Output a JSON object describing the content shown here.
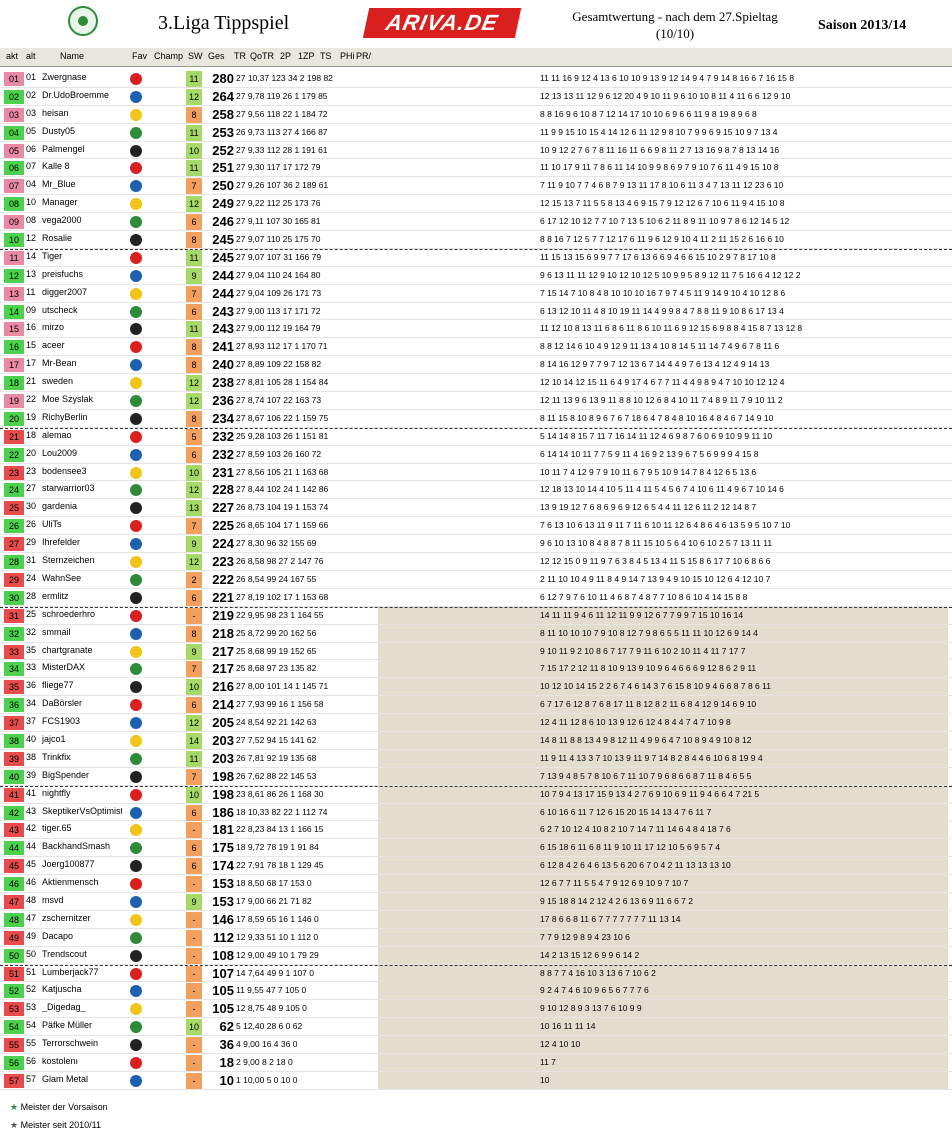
{
  "header": {
    "title": "3.Liga Tippspiel",
    "brand": "ARIVA.DE",
    "subtitle": "Gesamtwertung - nach dem 27.Spieltag (10/10)",
    "season": "Saison 2013/14"
  },
  "columns": {
    "akt": "akt",
    "alt": "alt",
    "name": "Name",
    "fav": "Fav",
    "champ": "Champ",
    "sw": "SW",
    "ges": "Ges",
    "tr": "TR",
    "qotr": "QoTR",
    "p2": "2P",
    "zp1": "1ZP",
    "ts": "TS",
    "phi": "PHi",
    "pr": "PR/"
  },
  "rows": [
    {
      "akt": "01",
      "alt": "01",
      "name": "Zwergnase",
      "sw": "11",
      "ges": "280",
      "stats": "27 10,37 123 34 2 198 82",
      "weeks": "11 11 16 9 12 4 13 6 10 10 9 13 9 12 14 9 4 7 9 14 8 16 6 7 16 15 8"
    },
    {
      "akt": "02",
      "alt": "02",
      "name": "Dr.UdoBroemme",
      "sw": "12",
      "ges": "264",
      "stats": "27 9,78 119 26 1 179 85",
      "weeks": "12 13 13 11 12 9 6 12 20 4 9 10 11 9 6 10 10 8 11 4 11 6 6 12 9 10"
    },
    {
      "akt": "03",
      "alt": "03",
      "name": "heisan",
      "sw": "8",
      "ges": "258",
      "stats": "27 9,56 118 22 1 184 72",
      "weeks": "8 8 16 9 6 10 8 7 12 14 17 10 10 6 9 6 6 11 9 8 19 8 9 6 8"
    },
    {
      "akt": "04",
      "alt": "05",
      "name": "Dusty05",
      "sw": "11",
      "ges": "253",
      "stats": "26 9,73 113 27 4 166 87",
      "weeks": "11 9 9 15 10 15 4 14 12 6 11 12 9 8 10 7 9 9 6 9 15 10 9 7 13 4"
    },
    {
      "akt": "05",
      "alt": "06",
      "name": "Palmengel",
      "sw": "10",
      "ges": "252",
      "stats": "27 9,33 112 28 1 191 61",
      "weeks": "10 9 12 2 7 6 7 8 11 16 11 6 6 9 8 11 2 7 13 16 9 8 7 8 13 14 16"
    },
    {
      "akt": "06",
      "alt": "07",
      "name": "Kalle 8",
      "sw": "11",
      "ges": "251",
      "stats": "27 9,30 117 17 172 79",
      "weeks": "11 10 17 9 11 7 8 6 11 14 10 9 9 8 6 9 7 9 10 7 6 11 4 9 15 10 8"
    },
    {
      "akt": "07",
      "alt": "04",
      "name": "Mr_Blue",
      "sw": "7",
      "ges": "250",
      "stats": "27 9,26 107 36 2 189 61",
      "weeks": "7 11 9 10 7 7 4 6 8 7 9 13 11 17 8 10 6 11 3 4 7 13 11 12 23 6 10"
    },
    {
      "akt": "08",
      "alt": "10",
      "name": "Manager",
      "sw": "12",
      "ges": "249",
      "stats": "27 9,22 112 25 173 76",
      "weeks": "12 15 13 7 11 5 5 8 13 4 6 9 15 7 9 12 12 6 7 10 6 11 9 4 15 10 8"
    },
    {
      "akt": "09",
      "alt": "08",
      "name": "vega2000",
      "sw": "6",
      "ges": "246",
      "stats": "27 9,11 107 30 165 81",
      "weeks": "6 17 12 10 12 7 7 10 7 13 5 10 6 2 11 8 9 11 10 9 7 8 6 12 14 5 12"
    },
    {
      "akt": "10",
      "alt": "12",
      "name": "Rosalie",
      "sw": "8",
      "ges": "245",
      "stats": "27 9,07 110 25 175 70",
      "weeks": "8 8 16 7 12 5 7 7 12 17 6 11 9 6 12 9 10 4 11 2 11 15 2 6 16 6 10"
    },
    {
      "akt": "11",
      "alt": "14",
      "name": "Tiger",
      "sw": "11",
      "ges": "245",
      "stats": "27 9,07 107 31 166 79",
      "weeks": "11 15 13 15 6 9 9 7 7 17 6 13 6 6 9 4 6 6 15 10 2 9 7 8 17 10 8"
    },
    {
      "akt": "12",
      "alt": "13",
      "name": "preisfuchs",
      "sw": "9",
      "ges": "244",
      "stats": "27 9,04 110 24 164 80",
      "weeks": "9 6 13 11 11 12 9 10 12 10 12 5 10 9 9 5 8 9 12 11 7 5 16 6 4 12 12 2"
    },
    {
      "akt": "13",
      "alt": "11",
      "name": "digger2007",
      "sw": "7",
      "ges": "244",
      "stats": "27 9,04 109 26 171 73",
      "weeks": "7 15 14 7 10 8 4 8 10 10 10 16 7 9 7 4 5 11 9 14 9 10 4 10 12 8 6"
    },
    {
      "akt": "14",
      "alt": "09",
      "name": "utscheck",
      "sw": "6",
      "ges": "243",
      "stats": "27 9,00 113 17 171 72",
      "weeks": "6 13 12 10 11 4 8 10 19 11 14 4 9 9 8 4 7 8 8 11 9 10 8 6 17 13 4"
    },
    {
      "akt": "15",
      "alt": "16",
      "name": "mirzo",
      "sw": "11",
      "ges": "243",
      "stats": "27 9,00 112 19 164 79",
      "weeks": "11 12 10 8 13 11 6 8 6 11 8 6 10 11 6 9 12 15 6 9 8 8 4 15 8 7 13 12 8"
    },
    {
      "akt": "16",
      "alt": "15",
      "name": "aceer",
      "sw": "8",
      "ges": "241",
      "stats": "27 8,93 112 17 1 170 71",
      "weeks": "8 8 12 14 6 10 4 9 12 9 11 13 4 10 8 14 5 11 14 7 4 9 6 7 8 11 6"
    },
    {
      "akt": "17",
      "alt": "17",
      "name": "Mr-Bean",
      "sw": "8",
      "ges": "240",
      "stats": "27 8,89 109 22 158 82",
      "weeks": "8 14 16 12 9 7 7 9 7 12 13 6 7 14 4 4 9 7 6 13 4 12 4 9 14 13"
    },
    {
      "akt": "18",
      "alt": "21",
      "name": "sweden",
      "sw": "12",
      "ges": "238",
      "stats": "27 8,81 105 28 1 154 84",
      "weeks": "12 10 14 12 15 11 6 4 9 17 4 6 7 7 11 4 4 9 8 9 4 7 10 10 12 12 4"
    },
    {
      "akt": "19",
      "alt": "22",
      "name": "Moe Szyslak",
      "sw": "12",
      "ges": "236",
      "stats": "27 8,74 107 22 163 73",
      "weeks": "12 11 13 9 6 13 9 11 8 8 10 12 6 8 4 10 11 7 4 8 9 11 7 9 10 11 2"
    },
    {
      "akt": "20",
      "alt": "19",
      "name": "RichyBerlin",
      "sw": "8",
      "ges": "234",
      "stats": "27 8,67 106 22 1 159 75",
      "weeks": "8 11 15 8 10 8 9 6 7 6 7 18 6 4 7 8 4 8 10 16 4 8 4 6 7 14 9 10"
    },
    {
      "akt": "21",
      "alt": "18",
      "name": "alemao",
      "sw": "5",
      "ges": "232",
      "stats": "25 9,28 103 26 1 151 81",
      "weeks": "5 14 14 8 15 7 11 7 16 14 11 12 4 6 9 8 7 6 0 6 9 10 9 9 11 10"
    },
    {
      "akt": "22",
      "alt": "20",
      "name": "Lou2009",
      "sw": "6",
      "ges": "232",
      "stats": "27 8,59 103 26 160 72",
      "weeks": "6 14 14 10 11 7 7 5 9 11 4 16 9 2 13 9 6 7 5 6 9 9 9 4 15 8"
    },
    {
      "akt": "23",
      "alt": "23",
      "name": "bodensee3",
      "sw": "10",
      "ges": "231",
      "stats": "27 8,56 105 21 1 163 68",
      "weeks": "10 11 7 4 12 9 7 9 10 11 6 7 9 5 10 9 14 7 8 4 12 6 5 13 6"
    },
    {
      "akt": "24",
      "alt": "27",
      "name": "starwarrior03",
      "sw": "12",
      "ges": "228",
      "stats": "27 8,44 102 24 1 142 86",
      "weeks": "12 18 13 10 14 4 10 5 11 4 11 5 4 5 6 7 4 10 6 11 4 9 6 7 10 14 6"
    },
    {
      "akt": "25",
      "alt": "30",
      "name": "gardenia",
      "sw": "13",
      "ges": "227",
      "stats": "26 8,73 104 19 1 153 74",
      "weeks": "13 9 19 12 7 6 8 6 9 6 9 12 6 5 4 4 11 12 6 11 2 12 14 8 7"
    },
    {
      "akt": "26",
      "alt": "26",
      "name": "UliTs",
      "sw": "7",
      "ges": "225",
      "stats": "26 8,65 104 17 1 159 66",
      "weeks": "7 6 13 10 6 13 11 9 11 7 11 6 10 11 12 6 4 8 6 4 6 13 5 9 5 10 7 10"
    },
    {
      "akt": "27",
      "alt": "29",
      "name": "Ihrefelder",
      "sw": "9",
      "ges": "224",
      "stats": "27 8,30 96 32 155 69",
      "weeks": "9 6 10 13 10 8 4 8 8 7 8 11 15 10 5 6 4 10 6 10 2 5 7 13 11 11"
    },
    {
      "akt": "28",
      "alt": "31",
      "name": "Sternzeichen",
      "sw": "12",
      "ges": "223",
      "stats": "26 8,58 98 27 2 147 76",
      "weeks": "12 12 15 0 9 11 9 7 6 3 8 4 5 13 4 11 5 15 8 6 17 7 10 6 8 6 6"
    },
    {
      "akt": "29",
      "alt": "24",
      "name": "WahnSee",
      "sw": "2",
      "ges": "222",
      "stats": "26 8,54 99 24 167 55",
      "weeks": "2 11 10 10 4 9 11 8 4 9 14 7 13 9 4 9 10 15 10 12 6 4 12 10 7"
    },
    {
      "akt": "30",
      "alt": "28",
      "name": "ermlitz",
      "sw": "6",
      "ges": "221",
      "stats": "27 8,19 102 17 1 153 68",
      "weeks": "6 12 7 9 7 6 10 11 4 6 8 7 4 8 7 7 10 8 6 10 4 14 15 8 8"
    },
    {
      "akt": "31",
      "alt": "25",
      "name": "schroederhro",
      "sw": "-",
      "ges": "219",
      "stats": "22 9,95 98 23 1 164 55",
      "weeks": "14 11 11 9 4 6 11 12 11 9 9 12 6 7 7 9 9 7 15 10 16 14"
    },
    {
      "akt": "32",
      "alt": "32",
      "name": "smmail",
      "sw": "8",
      "ges": "218",
      "stats": "25 8,72 99 20 162 56",
      "weeks": "8 11 10 10 10 7 9 10 8 12 7 9 8 6 5 5 11 11 10 12 6 9 14 4"
    },
    {
      "akt": "33",
      "alt": "35",
      "name": "chartgranate",
      "sw": "9",
      "ges": "217",
      "stats": "25 8,68 99 19 152 65",
      "weeks": "9 10 11 9 2 10 8 6 7 17 7 9 11 6 10 2 10 11 4 11 7 17 7"
    },
    {
      "akt": "34",
      "alt": "33",
      "name": "MisterDAX",
      "sw": "7",
      "ges": "217",
      "stats": "25 8,68 97 23 135 82",
      "weeks": "7 15 17 2 12 11 8 10 9 13 9 10 9 6 4 6 6 6 9 12 8 6 2 9 11"
    },
    {
      "akt": "35",
      "alt": "36",
      "name": "fliege77",
      "sw": "10",
      "ges": "216",
      "stats": "27 8,00 101 14 1 145 71",
      "weeks": "10 12 10 14 15 2 2 6 7 4 6 14 3 7 6 15 8 10 9 4 6 6 8 7 8 6 11"
    },
    {
      "akt": "36",
      "alt": "34",
      "name": "DaBörsler",
      "sw": "6",
      "ges": "214",
      "stats": "27 7,93 99 16 1 156 58",
      "weeks": "6 7 17 6 12 8 7 6 8 17 11 8 12 8 2 11 6 8 4 12 9 14 6 9 10"
    },
    {
      "akt": "37",
      "alt": "37",
      "name": "FCS1903",
      "sw": "12",
      "ges": "205",
      "stats": "24 8,54 92 21 142 63",
      "weeks": "12 4 11 12 8 6 10 13 9 12 6 12 4 8 4 4 7 4 7 10 9 8"
    },
    {
      "akt": "38",
      "alt": "40",
      "name": "jajco1",
      "sw": "14",
      "ges": "203",
      "stats": "27 7,52 94 15 141 62",
      "weeks": "14 8 11 8 8 13 4 9 8 12 11 4 9 9 6 4 7 10 8 9 4 9 10 8 12"
    },
    {
      "akt": "39",
      "alt": "38",
      "name": "Trinkfix",
      "sw": "11",
      "ges": "203",
      "stats": "26 7,81 92 19 135 68",
      "weeks": "11 9 11 4 13 3 7 10 13 9 11 9 7 14 8 2 8 4 4 6 10 6 8 19 9 4"
    },
    {
      "akt": "40",
      "alt": "39",
      "name": "BigSpender",
      "sw": "7",
      "ges": "198",
      "stats": "26 7,62 88 22 145 53",
      "weeks": "7 13 9 4 8 5 7 8 10 6 7 11 10 7 9 6 8 6 6 8 7 11 8 4 6 5 5"
    },
    {
      "akt": "41",
      "alt": "41",
      "name": "nightfly",
      "sw": "10",
      "ges": "198",
      "stats": "23 8,61 86 26 1 168 30",
      "weeks": "10 7 9 4 13 17 15 9 13 4 2 7 6 9 10 6 9 11 9 4 6 6 4 7 21 5"
    },
    {
      "akt": "42",
      "alt": "43",
      "name": "SkeptikerVsOptimist",
      "sw": "6",
      "ges": "186",
      "stats": "18 10,33 82 22 1 112 74",
      "weeks": "6 10 16 6 11 7 12 6 15 20 15 14 13 4 7 6 11 7"
    },
    {
      "akt": "43",
      "alt": "42",
      "name": "tiger.65",
      "sw": "-",
      "ges": "181",
      "stats": "22 8,23 84 13 1 166 15",
      "weeks": "6 2 7 10 12 4 10 8 2 10 7 14 7 11 14 6 4 8 4 18 7 6"
    },
    {
      "akt": "44",
      "alt": "44",
      "name": "BackhandSmash",
      "sw": "6",
      "ges": "175",
      "stats": "18 9,72 78 19 1 91 84",
      "weeks": "6 15 18 6 11 6 8 11 9 10 11 17 12 10 5 6 9 5 7 4"
    },
    {
      "akt": "45",
      "alt": "45",
      "name": "Joerg100877",
      "sw": "6",
      "ges": "174",
      "stats": "22 7,91 78 18 1 129 45",
      "weeks": "6 12 8 4 2 6 4 6 13 5 6 20 6 7 0 4 2 11 13 13 13 10"
    },
    {
      "akt": "46",
      "alt": "46",
      "name": "Aktienmensch",
      "sw": "-",
      "ges": "153",
      "stats": "18 8,50 68 17 153 0",
      "weeks": "12 6 7 7 11 5 5 4 7 9 12 6 9 10 9 7 10 7"
    },
    {
      "akt": "47",
      "alt": "48",
      "name": "msvd",
      "sw": "9",
      "ges": "153",
      "stats": "17 9,00 66 21 71 82",
      "weeks": "9 15 18 8 14 2 12 4 2 6 13 6 9 11 6 6 7 2"
    },
    {
      "akt": "48",
      "alt": "47",
      "name": "zschernitzer",
      "sw": "-",
      "ges": "146",
      "stats": "17 8,59 65 16 1 146 0",
      "weeks": "17 8 6 6 8 11 6 7 7 7 7 7 7 7 11 13 14"
    },
    {
      "akt": "49",
      "alt": "49",
      "name": "Dacapo",
      "sw": "-",
      "ges": "112",
      "stats": "12 9,33 51 10 1 112 0",
      "weeks": "7 7 9 12 9 8 9 4 23 10 6"
    },
    {
      "akt": "50",
      "alt": "50",
      "name": "Trendscout",
      "sw": "-",
      "ges": "108",
      "stats": "12 9,00 49 10 1 79 29",
      "weeks": "14 2 13 15 12 6 9 9 6 14 2"
    },
    {
      "akt": "51",
      "alt": "51",
      "name": "Lumberjack77",
      "sw": "-",
      "ges": "107",
      "stats": "14 7,64 49 9 1 107 0",
      "weeks": "8 8 7 7 4 16 10 3 13 6 7 10 6 2"
    },
    {
      "akt": "52",
      "alt": "52",
      "name": "Katjuscha",
      "sw": "-",
      "ges": "105",
      "stats": "11 9,55 47 7 105 0",
      "weeks": "9 2 4 7 4 6 10 9 6 5 6 7 7 7 6"
    },
    {
      "akt": "53",
      "alt": "53",
      "name": "_Digedag_",
      "sw": "-",
      "ges": "105",
      "stats": "12 8,75 48 9 105 0",
      "weeks": "9 10 12 8 9 3 13 7 6 10 9 9"
    },
    {
      "akt": "54",
      "alt": "54",
      "name": "Päfke Müller",
      "sw": "10",
      "ges": "62",
      "stats": "5 12,40 28 6 0 62",
      "weeks": "10 16 11 11 14"
    },
    {
      "akt": "55",
      "alt": "55",
      "name": "Terrorschwein",
      "sw": "-",
      "ges": "36",
      "stats": "4 9,00 16 4 36 0",
      "weeks": "12 4 10 10"
    },
    {
      "akt": "56",
      "alt": "56",
      "name": "kostolenı",
      "sw": "-",
      "ges": "18",
      "stats": "2 9,00 8 2 18 0",
      "weeks": "11 7"
    },
    {
      "akt": "57",
      "alt": "57",
      "name": "Glam Metal",
      "sw": "-",
      "ges": "10",
      "stats": "1 10,00 5 0 10 0",
      "weeks": "10"
    }
  ],
  "legend": {
    "green_star": "Meister der Vorsaison",
    "gray_star": "Meister seit 2010/11"
  },
  "colors": {
    "akt_green": "#4dd04d",
    "akt_red": "#e84b4b",
    "akt_pink": "#e98aa5",
    "sw_green": "#a6d86a",
    "sw_orange": "#f2a060",
    "highlight": "#b9f02f",
    "tan": "#e2ddcd",
    "blue": "#bcdde8"
  }
}
